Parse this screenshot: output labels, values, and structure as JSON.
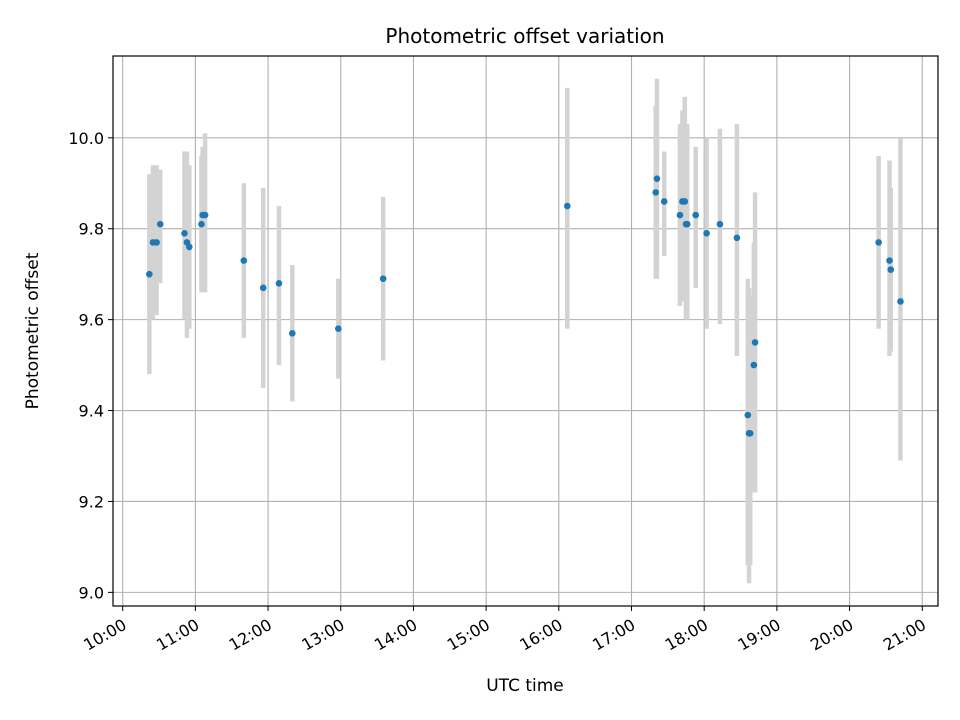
{
  "chart_data": {
    "type": "scatter",
    "title": "Photometric offset variation",
    "xlabel": "UTC time",
    "ylabel": "Photometric offset",
    "xlim": [
      "09:52",
      "21:13"
    ],
    "ylim": [
      8.97,
      10.18
    ],
    "xticks": [
      "10:00",
      "11:00",
      "12:00",
      "13:00",
      "14:00",
      "15:00",
      "16:00",
      "17:00",
      "18:00",
      "19:00",
      "20:00",
      "21:00"
    ],
    "yticks": [
      9.0,
      9.2,
      9.4,
      9.6,
      9.8,
      10.0
    ],
    "grid": true,
    "errorbar_color": "#d3d3d3",
    "marker_color": "#1f77b4",
    "points": [
      {
        "time": "10:22",
        "y": 9.7,
        "err_low": 9.48,
        "err_high": 9.92
      },
      {
        "time": "10:25",
        "y": 9.77,
        "err_low": 9.6,
        "err_high": 9.94
      },
      {
        "time": "10:28",
        "y": 9.77,
        "err_low": 9.61,
        "err_high": 9.94
      },
      {
        "time": "10:31",
        "y": 9.81,
        "err_low": 9.68,
        "err_high": 9.93
      },
      {
        "time": "10:51",
        "y": 9.79,
        "err_low": 9.6,
        "err_high": 9.97
      },
      {
        "time": "10:53",
        "y": 9.77,
        "err_low": 9.56,
        "err_high": 9.97
      },
      {
        "time": "10:55",
        "y": 9.76,
        "err_low": 9.58,
        "err_high": 9.94
      },
      {
        "time": "11:05",
        "y": 9.81,
        "err_low": 9.66,
        "err_high": 9.96
      },
      {
        "time": "11:06",
        "y": 9.83,
        "err_low": 9.67,
        "err_high": 9.98
      },
      {
        "time": "11:08",
        "y": 9.83,
        "err_low": 9.66,
        "err_high": 10.01
      },
      {
        "time": "11:40",
        "y": 9.73,
        "err_low": 9.56,
        "err_high": 9.9
      },
      {
        "time": "11:56",
        "y": 9.67,
        "err_low": 9.45,
        "err_high": 9.89
      },
      {
        "time": "12:09",
        "y": 9.68,
        "err_low": 9.5,
        "err_high": 9.85
      },
      {
        "time": "12:20",
        "y": 9.57,
        "err_low": 9.42,
        "err_high": 9.72
      },
      {
        "time": "12:58",
        "y": 9.58,
        "err_low": 9.47,
        "err_high": 9.69
      },
      {
        "time": "13:35",
        "y": 9.69,
        "err_low": 9.51,
        "err_high": 9.87
      },
      {
        "time": "16:07",
        "y": 9.85,
        "err_low": 9.58,
        "err_high": 10.11
      },
      {
        "time": "17:20",
        "y": 9.88,
        "err_low": 9.69,
        "err_high": 10.07
      },
      {
        "time": "17:21",
        "y": 9.91,
        "err_low": 9.69,
        "err_high": 10.13
      },
      {
        "time": "17:27",
        "y": 9.86,
        "err_low": 9.74,
        "err_high": 9.97
      },
      {
        "time": "17:40",
        "y": 9.83,
        "err_low": 9.63,
        "err_high": 10.03
      },
      {
        "time": "17:42",
        "y": 9.86,
        "err_low": 9.64,
        "err_high": 10.06
      },
      {
        "time": "17:44",
        "y": 9.86,
        "err_low": 9.64,
        "err_high": 10.09
      },
      {
        "time": "17:45",
        "y": 9.81,
        "err_low": 9.6,
        "err_high": 10.02
      },
      {
        "time": "17:46",
        "y": 9.81,
        "err_low": 9.6,
        "err_high": 10.03
      },
      {
        "time": "17:53",
        "y": 9.83,
        "err_low": 9.67,
        "err_high": 9.98
      },
      {
        "time": "18:02",
        "y": 9.79,
        "err_low": 9.58,
        "err_high": 10.0
      },
      {
        "time": "18:13",
        "y": 9.81,
        "err_low": 9.59,
        "err_high": 10.02
      },
      {
        "time": "18:27",
        "y": 9.78,
        "err_low": 9.52,
        "err_high": 10.03
      },
      {
        "time": "18:36",
        "y": 9.39,
        "err_low": 9.06,
        "err_high": 9.69
      },
      {
        "time": "18:37",
        "y": 9.35,
        "err_low": 9.02,
        "err_high": 9.67
      },
      {
        "time": "18:38",
        "y": 9.35,
        "err_low": 9.06,
        "err_high": 9.65
      },
      {
        "time": "18:41",
        "y": 9.5,
        "err_low": 9.22,
        "err_high": 9.77
      },
      {
        "time": "18:42",
        "y": 9.55,
        "err_low": 9.22,
        "err_high": 9.88
      },
      {
        "time": "20:24",
        "y": 9.77,
        "err_low": 9.58,
        "err_high": 9.96
      },
      {
        "time": "20:33",
        "y": 9.73,
        "err_low": 9.52,
        "err_high": 9.95
      },
      {
        "time": "20:34",
        "y": 9.71,
        "err_low": 9.53,
        "err_high": 9.89
      },
      {
        "time": "20:42",
        "y": 9.64,
        "err_low": 9.29,
        "err_high": 10.0
      }
    ]
  }
}
